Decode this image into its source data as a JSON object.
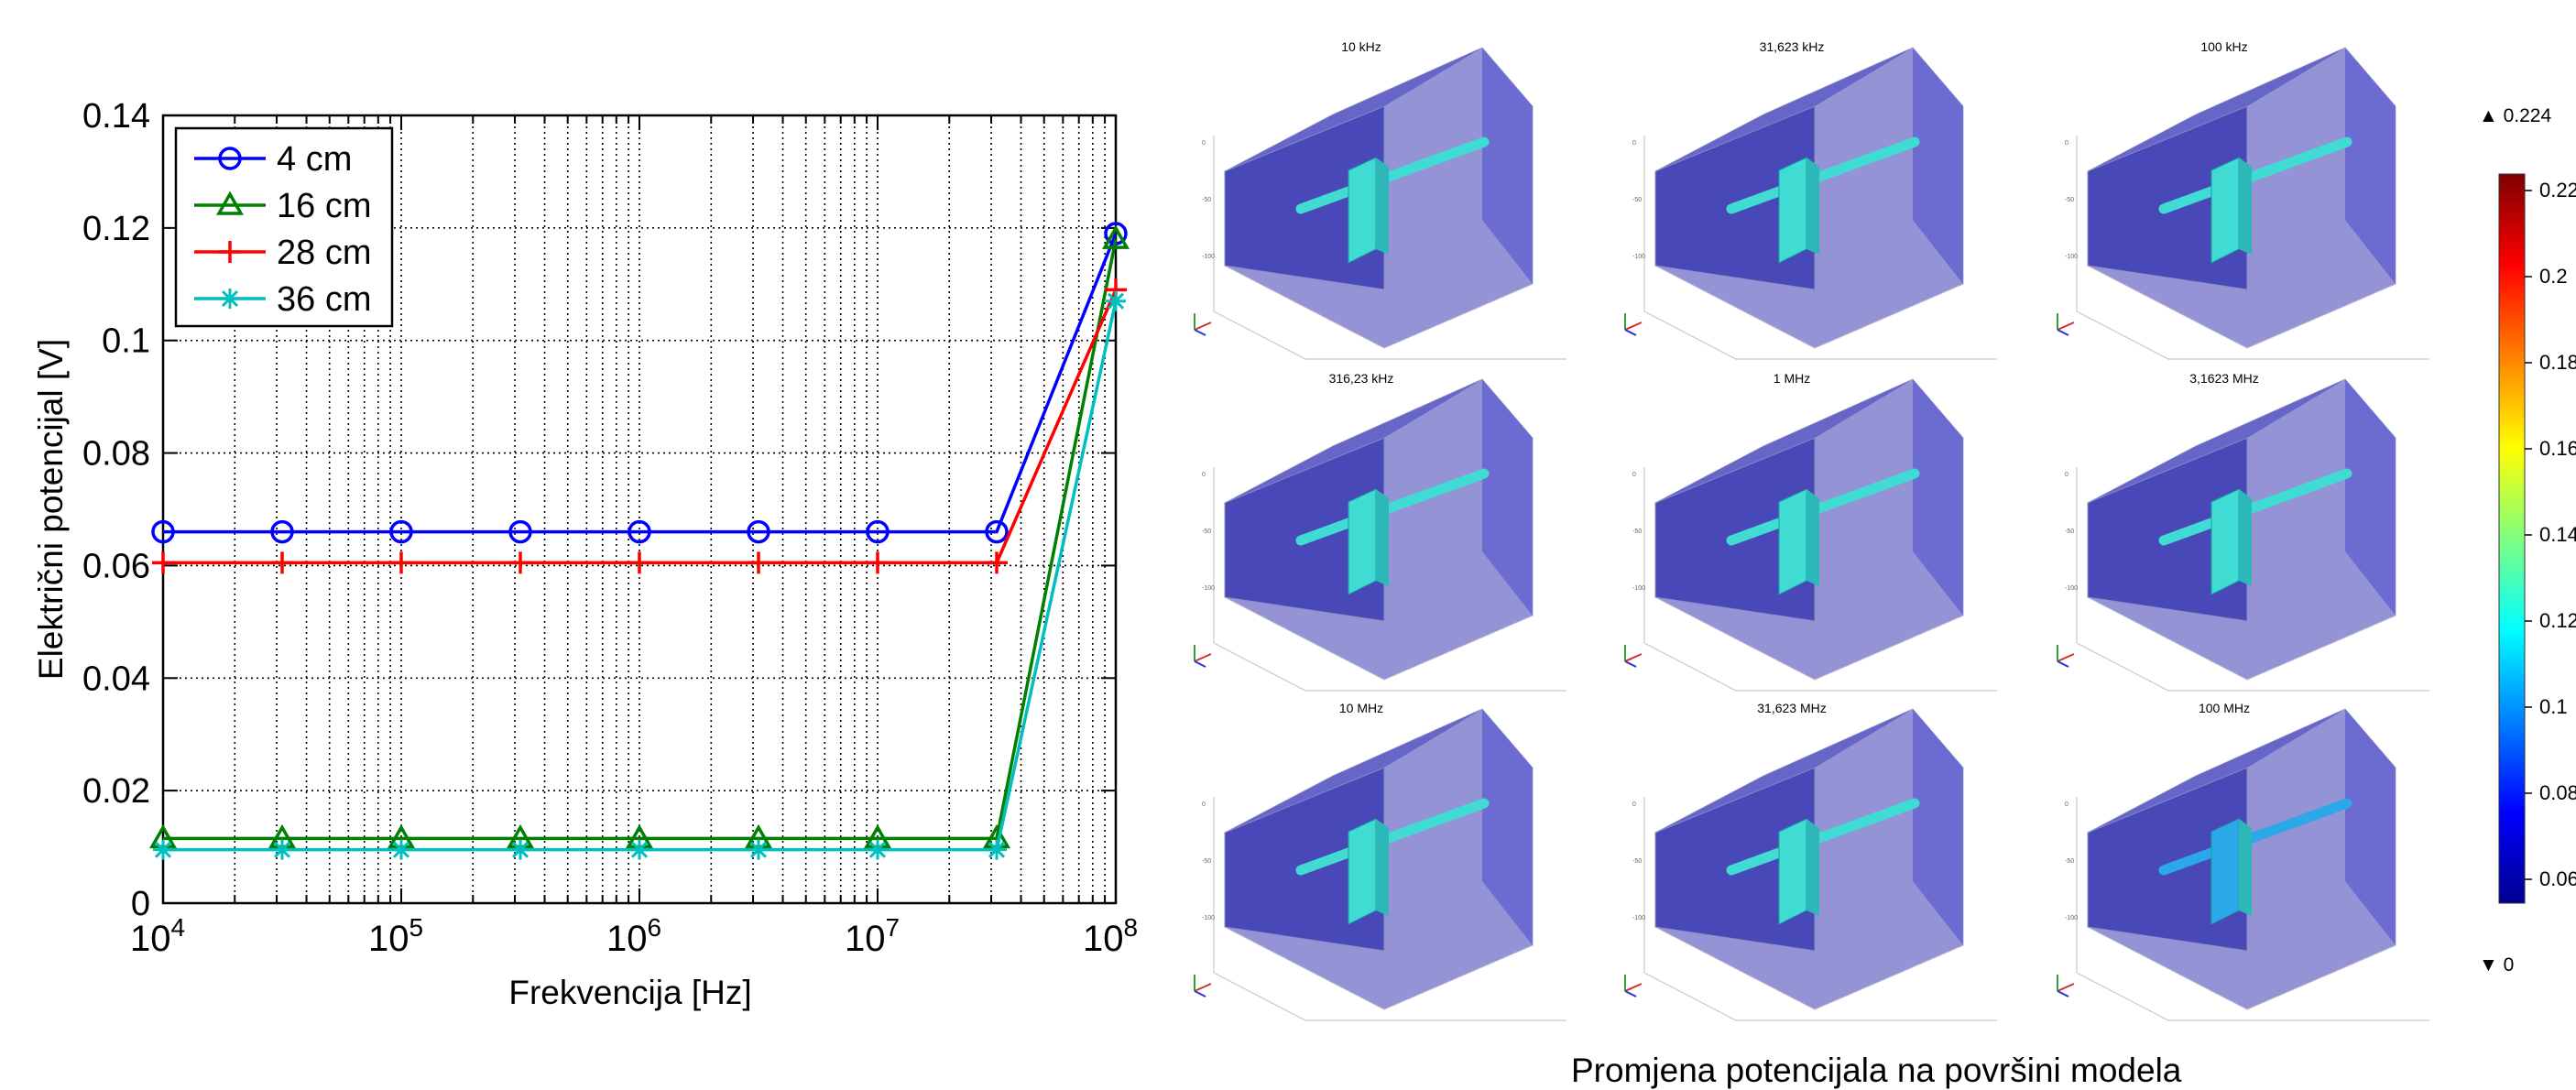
{
  "chart_data": {
    "type": "line",
    "xlabel": "Frekvencija [Hz]",
    "ylabel": "Električni potencijal [V]",
    "x_scale": "log",
    "xlim": [
      10000,
      100000000
    ],
    "ylim": [
      0,
      0.14
    ],
    "grid": true,
    "legend_position": "top-left",
    "x": [
      10000,
      31623,
      100000,
      316230,
      1000000,
      3162300,
      10000000,
      31623000,
      100000000
    ],
    "x_ticks": [
      {
        "base": "10",
        "exp": "4",
        "value": 10000
      },
      {
        "base": "10",
        "exp": "5",
        "value": 100000
      },
      {
        "base": "10",
        "exp": "6",
        "value": 1000000
      },
      {
        "base": "10",
        "exp": "7",
        "value": 10000000
      },
      {
        "base": "10",
        "exp": "8",
        "value": 100000000
      }
    ],
    "y_ticks": [
      {
        "label": "0",
        "value": 0
      },
      {
        "label": "0.02",
        "value": 0.02
      },
      {
        "label": "0.04",
        "value": 0.04
      },
      {
        "label": "0.06",
        "value": 0.06
      },
      {
        "label": "0.08",
        "value": 0.08
      },
      {
        "label": "0.1",
        "value": 0.1
      },
      {
        "label": "0.12",
        "value": 0.12
      },
      {
        "label": "0.14",
        "value": 0.14
      }
    ],
    "series": [
      {
        "name": "4 cm",
        "color": "#0000ff",
        "marker": "circle",
        "values": [
          0.066,
          0.066,
          0.066,
          0.066,
          0.066,
          0.066,
          0.066,
          0.066,
          0.119
        ]
      },
      {
        "name": "16 cm",
        "color": "#008000",
        "marker": "triangle",
        "values": [
          0.0115,
          0.0115,
          0.0115,
          0.0115,
          0.0115,
          0.0115,
          0.0115,
          0.0115,
          0.118
        ]
      },
      {
        "name": "28 cm",
        "color": "#ff0000",
        "marker": "plus",
        "values": [
          0.0605,
          0.0605,
          0.0605,
          0.0605,
          0.0605,
          0.0605,
          0.0605,
          0.0605,
          0.109
        ]
      },
      {
        "name": "36 cm",
        "color": "#00bfbf",
        "marker": "asterisk",
        "values": [
          0.0095,
          0.0095,
          0.0095,
          0.0095,
          0.0095,
          0.0095,
          0.0095,
          0.0095,
          0.107
        ]
      }
    ]
  },
  "simulation_panels": {
    "labels": [
      "10 kHz",
      "31,623 kHz",
      "100 kHz",
      "316,23 kHz",
      "1 MHz",
      "3,1623 MHz",
      "10 MHz",
      "31,623 MHz",
      "100 MHz"
    ],
    "body_colors": [
      "#40dcd4",
      "#40dcd4",
      "#40dcd4",
      "#40dcd4",
      "#40dcd4",
      "#40dcd4",
      "#40dcd4",
      "#40dcd4",
      "#2aa8e8"
    ],
    "box_color": "#3c3cb4"
  },
  "colorbar": {
    "max_label": "▲ 0.224",
    "min_label": "▼ 0",
    "tick_labels": [
      "0.22",
      "0.2",
      "0.18",
      "0.16",
      "0.14",
      "0.12",
      "0.1",
      "0.08",
      "0.06"
    ],
    "colors": [
      "#7f0000",
      "#ff0000",
      "#ff8000",
      "#ffff00",
      "#80ff80",
      "#00ffff",
      "#0080ff",
      "#0000ff",
      "#00008f"
    ]
  },
  "caption": "Promjena potencijala na površini modela"
}
